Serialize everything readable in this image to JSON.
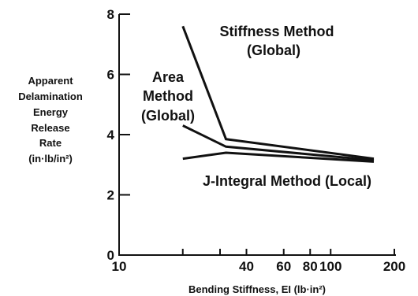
{
  "chart_data": {
    "type": "line",
    "title": "",
    "ylabel_lines": [
      "Apparent",
      "Delamination",
      "Energy",
      "Release",
      "Rate",
      "(in·lb/in²)"
    ],
    "xlabel": "Bending Stiffness, EI (lb·in²)",
    "x_scale": "log",
    "xlim": [
      10,
      200
    ],
    "ylim": [
      0,
      8
    ],
    "x_ticks": [
      10,
      20,
      40,
      60,
      80,
      100,
      200
    ],
    "x_tick_labels": [
      "10",
      "",
      "40",
      "60",
      "80",
      "100",
      "200"
    ],
    "x_minor_ticks": [
      30
    ],
    "y_ticks": [
      0,
      2,
      4,
      6,
      8
    ],
    "y_tick_labels": [
      "0",
      "2",
      "4",
      "6",
      "8"
    ],
    "grid": false,
    "legend": "none",
    "series": [
      {
        "name": "Stiffness Method (Global)",
        "x": [
          20,
          32,
          160
        ],
        "y": [
          7.6,
          3.85,
          3.2
        ]
      },
      {
        "name": "Area Method (Global)",
        "x": [
          20,
          32,
          160
        ],
        "y": [
          4.3,
          3.6,
          3.15
        ]
      },
      {
        "name": "J-Integral Method (Local)",
        "x": [
          20,
          32,
          160
        ],
        "y": [
          3.2,
          3.4,
          3.1
        ]
      }
    ],
    "annotations": [
      {
        "series": "Stiffness Method (Global)",
        "lines": [
          "Stiffness Method",
          "(Global)"
        ]
      },
      {
        "series": "Area Method (Global)",
        "lines": [
          "Area",
          "Method",
          "(Global)"
        ]
      },
      {
        "series": "J-Integral Method (Local)",
        "lines": [
          "J-Integral Method (Local)"
        ]
      }
    ],
    "colors": {
      "ink": "#111111",
      "background": "#ffffff"
    }
  }
}
